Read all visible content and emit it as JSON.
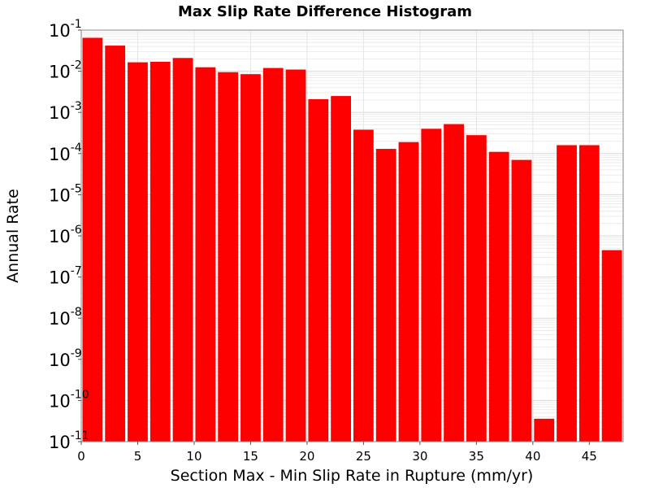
{
  "chart_data": {
    "type": "bar",
    "title": "Max Slip Rate Difference Histogram",
    "xlabel": "Section Max - Min Slip Rate in Rupture (mm/yr)",
    "ylabel": "Annual Rate",
    "y_scale": "log",
    "ylim": [
      1e-11,
      0.1
    ],
    "xlim": [
      0,
      48
    ],
    "bin_width": 2,
    "grid": true,
    "legend": "none",
    "bar_color": "#ff0000",
    "x_ticks": [
      0,
      5,
      10,
      15,
      20,
      25,
      30,
      35,
      40,
      45
    ],
    "x_tick_labels": [
      "0",
      "5",
      "10",
      "15",
      "20",
      "25",
      "30",
      "35",
      "40",
      "45"
    ],
    "y_ticks": [
      {
        "value": 1e-11,
        "base": "10",
        "exp": "-11"
      },
      {
        "value": 1e-10,
        "base": "10",
        "exp": "-10"
      },
      {
        "value": 1e-09,
        "base": "10",
        "exp": "-9"
      },
      {
        "value": 1e-08,
        "base": "10",
        "exp": "-8"
      },
      {
        "value": 1e-07,
        "base": "10",
        "exp": "-7"
      },
      {
        "value": 1e-06,
        "base": "10",
        "exp": "-6"
      },
      {
        "value": 1e-05,
        "base": "10",
        "exp": "-5"
      },
      {
        "value": 0.0001,
        "base": "10",
        "exp": "-4"
      },
      {
        "value": 0.001,
        "base": "10",
        "exp": "-3"
      },
      {
        "value": 0.01,
        "base": "10",
        "exp": "-2"
      },
      {
        "value": 0.1,
        "base": "10",
        "exp": "-1"
      }
    ],
    "bins": [
      {
        "x0": 0,
        "x1": 2,
        "value": 0.065
      },
      {
        "x0": 2,
        "x1": 4,
        "value": 0.042
      },
      {
        "x0": 4,
        "x1": 6,
        "value": 0.0165
      },
      {
        "x0": 6,
        "x1": 8,
        "value": 0.017
      },
      {
        "x0": 8,
        "x1": 10,
        "value": 0.021
      },
      {
        "x0": 10,
        "x1": 12,
        "value": 0.0125
      },
      {
        "x0": 12,
        "x1": 14,
        "value": 0.0095
      },
      {
        "x0": 14,
        "x1": 16,
        "value": 0.0085
      },
      {
        "x0": 16,
        "x1": 18,
        "value": 0.012
      },
      {
        "x0": 18,
        "x1": 20,
        "value": 0.011
      },
      {
        "x0": 20,
        "x1": 22,
        "value": 0.0021
      },
      {
        "x0": 22,
        "x1": 24,
        "value": 0.0025
      },
      {
        "x0": 24,
        "x1": 26,
        "value": 0.00038
      },
      {
        "x0": 26,
        "x1": 28,
        "value": 0.00013
      },
      {
        "x0": 28,
        "x1": 30,
        "value": 0.00019
      },
      {
        "x0": 30,
        "x1": 32,
        "value": 0.0004
      },
      {
        "x0": 32,
        "x1": 34,
        "value": 0.00052
      },
      {
        "x0": 34,
        "x1": 36,
        "value": 0.00028
      },
      {
        "x0": 36,
        "x1": 38,
        "value": 0.00011
      },
      {
        "x0": 38,
        "x1": 40,
        "value": 7e-05
      },
      {
        "x0": 40,
        "x1": 42,
        "value": 3.6e-11
      },
      {
        "x0": 42,
        "x1": 44,
        "value": 0.00016
      },
      {
        "x0": 44,
        "x1": 46,
        "value": 0.00016
      },
      {
        "x0": 46,
        "x1": 48,
        "value": 4.5e-07
      }
    ]
  }
}
